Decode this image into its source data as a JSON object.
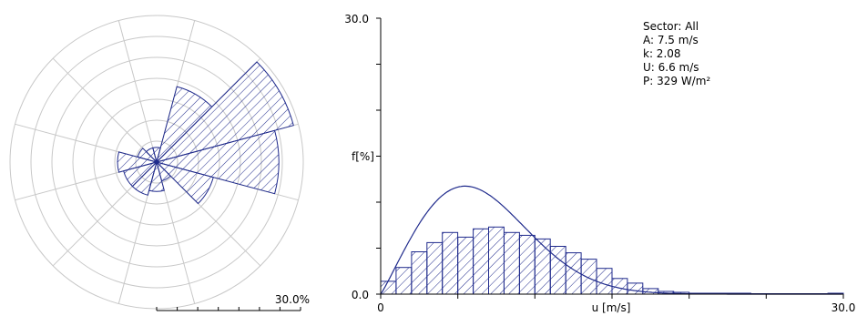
{
  "chart_data": [
    {
      "type": "wind-rose",
      "sectors": 12,
      "radial_max_label": "30.0%",
      "radial_max": 30,
      "ring_count": 7,
      "sector_frequency_percent": [
        3,
        16,
        29,
        25,
        12,
        4,
        6,
        7,
        7,
        8,
        4,
        3
      ],
      "color": "#1f2a8c",
      "grid_color": "#c8c8c8"
    },
    {
      "type": "histogram",
      "x_min": 0,
      "x_max": 30,
      "y_min": 0,
      "y_max": 30,
      "xlabel": "u [m/s]",
      "ylabel": "f[%]",
      "ytick_labels": [
        "30.0",
        "0.0"
      ],
      "xtick_labels": [
        "0",
        "30.0"
      ],
      "bin_width": 1,
      "values": [
        1.4,
        2.9,
        4.6,
        5.6,
        6.7,
        6.2,
        7.1,
        7.3,
        6.7,
        6.4,
        6.0,
        5.2,
        4.5,
        3.8,
        2.8,
        1.7,
        1.2,
        0.6,
        0.3,
        0.2,
        0.1,
        0.1,
        0.1,
        0.1,
        0.05,
        0.05,
        0.05,
        0.05,
        0.05,
        0.1
      ],
      "weibull": {
        "A": 7.5,
        "k": 2.08
      },
      "color": "#1f2a8c"
    }
  ],
  "stats": {
    "sector": "Sector: All",
    "A": "A: 7.5 m/s",
    "k": "k: 2.08",
    "U": "U: 6.6 m/s",
    "P": "P: 329 W/m²"
  }
}
